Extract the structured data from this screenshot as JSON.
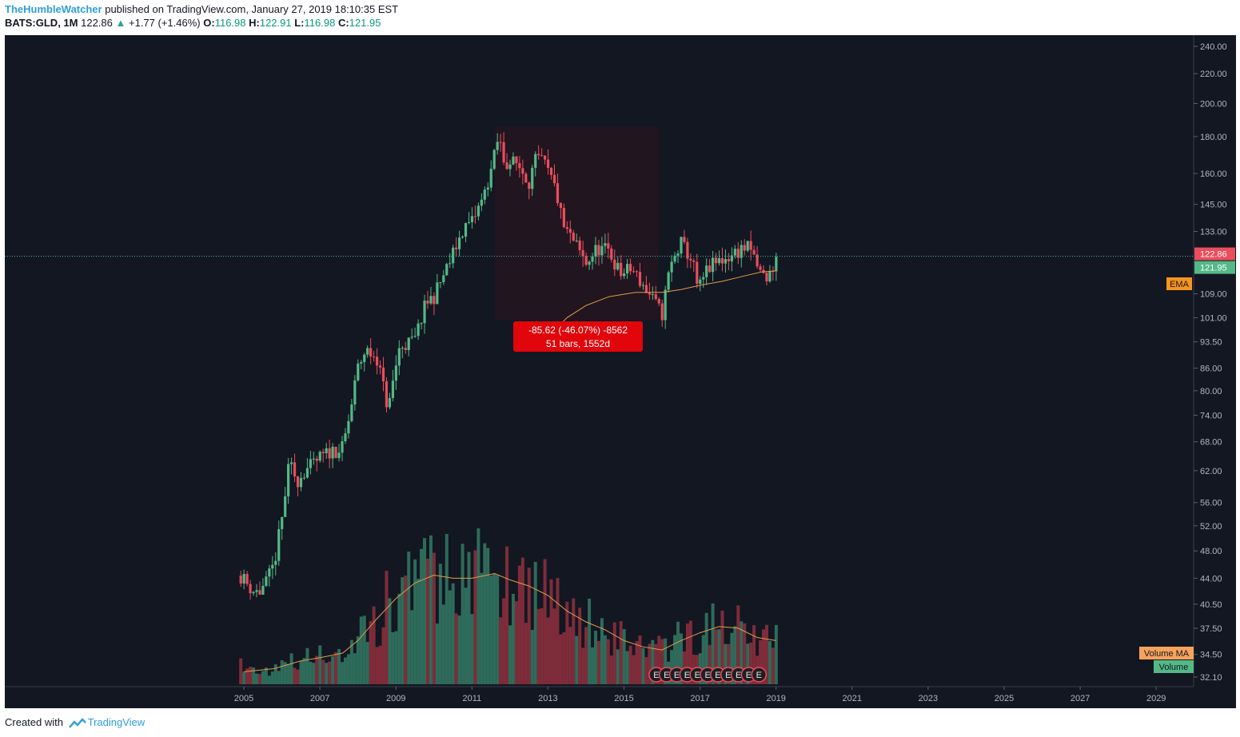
{
  "header": {
    "author": "TheHumbleWatcher",
    "published_text": "published on TradingView.com, January 27, 2019 18:10:35 EST",
    "symbol": "BATS:GLD, 1M",
    "last": "122.86",
    "change": "+1.77 (+1.46%)",
    "o_label": "O:",
    "o_value": "116.98",
    "h_label": "H:",
    "h_value": "122.91",
    "l_label": "L:",
    "l_value": "116.98",
    "c_label": "C:",
    "c_value": "121.95"
  },
  "footer": {
    "created_with": "Created with",
    "brand": "TradingView"
  },
  "colors": {
    "background": "#131722",
    "up": "#53b987",
    "down": "#eb4d5c",
    "volume_up": "#2e6b5a",
    "volume_down": "#7e2c3a",
    "ema": "#e59a4c",
    "measure_box": "#e0060b",
    "price_line": "#4db6ac"
  },
  "chart_data": {
    "type": "candlestick",
    "title": "",
    "x_axis": {
      "ticks": [
        "2005",
        "2007",
        "2009",
        "2011",
        "2013",
        "2015",
        "2017",
        "2019",
        "2021",
        "2023",
        "2025",
        "2027",
        "2029"
      ]
    },
    "y_axis": {
      "scale": "log",
      "range": [
        31.5,
        250
      ],
      "ticks": [
        "240.00",
        "220.00",
        "200.00",
        "180.00",
        "160.00",
        "145.00",
        "133.00",
        "122.86",
        "121.95",
        "109.00",
        "101.00",
        "93.50",
        "86.00",
        "80.00",
        "74.00",
        "68.00",
        "62.00",
        "56.00",
        "52.00",
        "48.00",
        "44.00",
        "40.50",
        "37.50",
        "34.50",
        "32.10"
      ]
    },
    "last_price": 122.86,
    "last_close": 121.95,
    "price_path": [
      [
        2004.9,
        44.5
      ],
      [
        2005.2,
        42.5
      ],
      [
        2005.4,
        42.0
      ],
      [
        2005.6,
        43.5
      ],
      [
        2005.8,
        46.0
      ],
      [
        2006.0,
        53.0
      ],
      [
        2006.2,
        63.5
      ],
      [
        2006.4,
        60.0
      ],
      [
        2006.6,
        62.0
      ],
      [
        2006.8,
        63.0
      ],
      [
        2007.0,
        64.5
      ],
      [
        2007.3,
        66.0
      ],
      [
        2007.6,
        66.5
      ],
      [
        2007.8,
        74.5
      ],
      [
        2008.0,
        86.0
      ],
      [
        2008.2,
        91.0
      ],
      [
        2008.5,
        89.0
      ],
      [
        2008.8,
        75.0
      ],
      [
        2008.95,
        84.0
      ],
      [
        2009.1,
        92.0
      ],
      [
        2009.5,
        94.0
      ],
      [
        2009.8,
        106.0
      ],
      [
        2010.0,
        108.0
      ],
      [
        2010.4,
        120.0
      ],
      [
        2010.8,
        135.0
      ],
      [
        2011.0,
        137.0
      ],
      [
        2011.3,
        148.0
      ],
      [
        2011.55,
        165.0
      ],
      [
        2011.7,
        180.0
      ],
      [
        2011.85,
        166.0
      ],
      [
        2012.2,
        165.0
      ],
      [
        2012.5,
        156.0
      ],
      [
        2012.7,
        168.0
      ],
      [
        2012.9,
        165.0
      ],
      [
        2013.2,
        152.0
      ],
      [
        2013.4,
        135.0
      ],
      [
        2013.7,
        128.0
      ],
      [
        2014.0,
        120.0
      ],
      [
        2014.3,
        126.0
      ],
      [
        2014.6,
        125.0
      ],
      [
        2014.9,
        116.0
      ],
      [
        2015.2,
        118.0
      ],
      [
        2015.5,
        112.0
      ],
      [
        2015.8,
        106.0
      ],
      [
        2016.0,
        102.0
      ],
      [
        2016.2,
        118.0
      ],
      [
        2016.5,
        128.0
      ],
      [
        2016.8,
        121.0
      ],
      [
        2016.95,
        110.0
      ],
      [
        2017.2,
        118.0
      ],
      [
        2017.5,
        121.0
      ],
      [
        2017.8,
        123.0
      ],
      [
        2018.1,
        126.0
      ],
      [
        2018.3,
        126.0
      ],
      [
        2018.6,
        116.0
      ],
      [
        2018.8,
        114.5
      ],
      [
        2019.0,
        122.0
      ]
    ],
    "ema": [
      [
        2013.0,
        95.0
      ],
      [
        2013.5,
        101.0
      ],
      [
        2014.0,
        105.0
      ],
      [
        2014.6,
        108.0
      ],
      [
        2015.3,
        109.5
      ],
      [
        2016.0,
        109.5
      ],
      [
        2016.5,
        110.5
      ],
      [
        2017.0,
        112.0
      ],
      [
        2017.6,
        113.5
      ],
      [
        2018.2,
        115.5
      ],
      [
        2018.6,
        116.8
      ],
      [
        2019.0,
        117.3
      ]
    ],
    "volume_ma": [
      [
        2005.0,
        0.08
      ],
      [
        2005.8,
        0.1
      ],
      [
        2006.5,
        0.15
      ],
      [
        2007.0,
        0.17
      ],
      [
        2007.6,
        0.2
      ],
      [
        2008.0,
        0.28
      ],
      [
        2008.5,
        0.42
      ],
      [
        2009.0,
        0.55
      ],
      [
        2009.5,
        0.65
      ],
      [
        2010.0,
        0.7
      ],
      [
        2010.5,
        0.68
      ],
      [
        2011.0,
        0.68
      ],
      [
        2011.6,
        0.71
      ],
      [
        2012.0,
        0.67
      ],
      [
        2012.5,
        0.63
      ],
      [
        2013.0,
        0.57
      ],
      [
        2013.5,
        0.47
      ],
      [
        2014.0,
        0.4
      ],
      [
        2014.5,
        0.35
      ],
      [
        2015.0,
        0.28
      ],
      [
        2015.5,
        0.24
      ],
      [
        2016.0,
        0.22
      ],
      [
        2016.5,
        0.28
      ],
      [
        2017.0,
        0.33
      ],
      [
        2017.5,
        0.37
      ],
      [
        2018.0,
        0.36
      ],
      [
        2018.5,
        0.3
      ],
      [
        2019.0,
        0.28
      ]
    ],
    "measure": {
      "text1": "-85.62 (-46.07%) -8562",
      "text2": "51 bars, 1552d",
      "from": [
        2011.6,
        185.86
      ],
      "to": [
        2015.9,
        100.24
      ]
    },
    "earnings_markers": [
      "E",
      "E",
      "E",
      "E",
      "E",
      "E",
      "E",
      "E",
      "E",
      "E",
      "E"
    ],
    "labels": {
      "last_price": "122.86",
      "close": "121.95",
      "ema": "EMA",
      "volume_ma": "Volume MA",
      "volume": "Volume"
    }
  }
}
